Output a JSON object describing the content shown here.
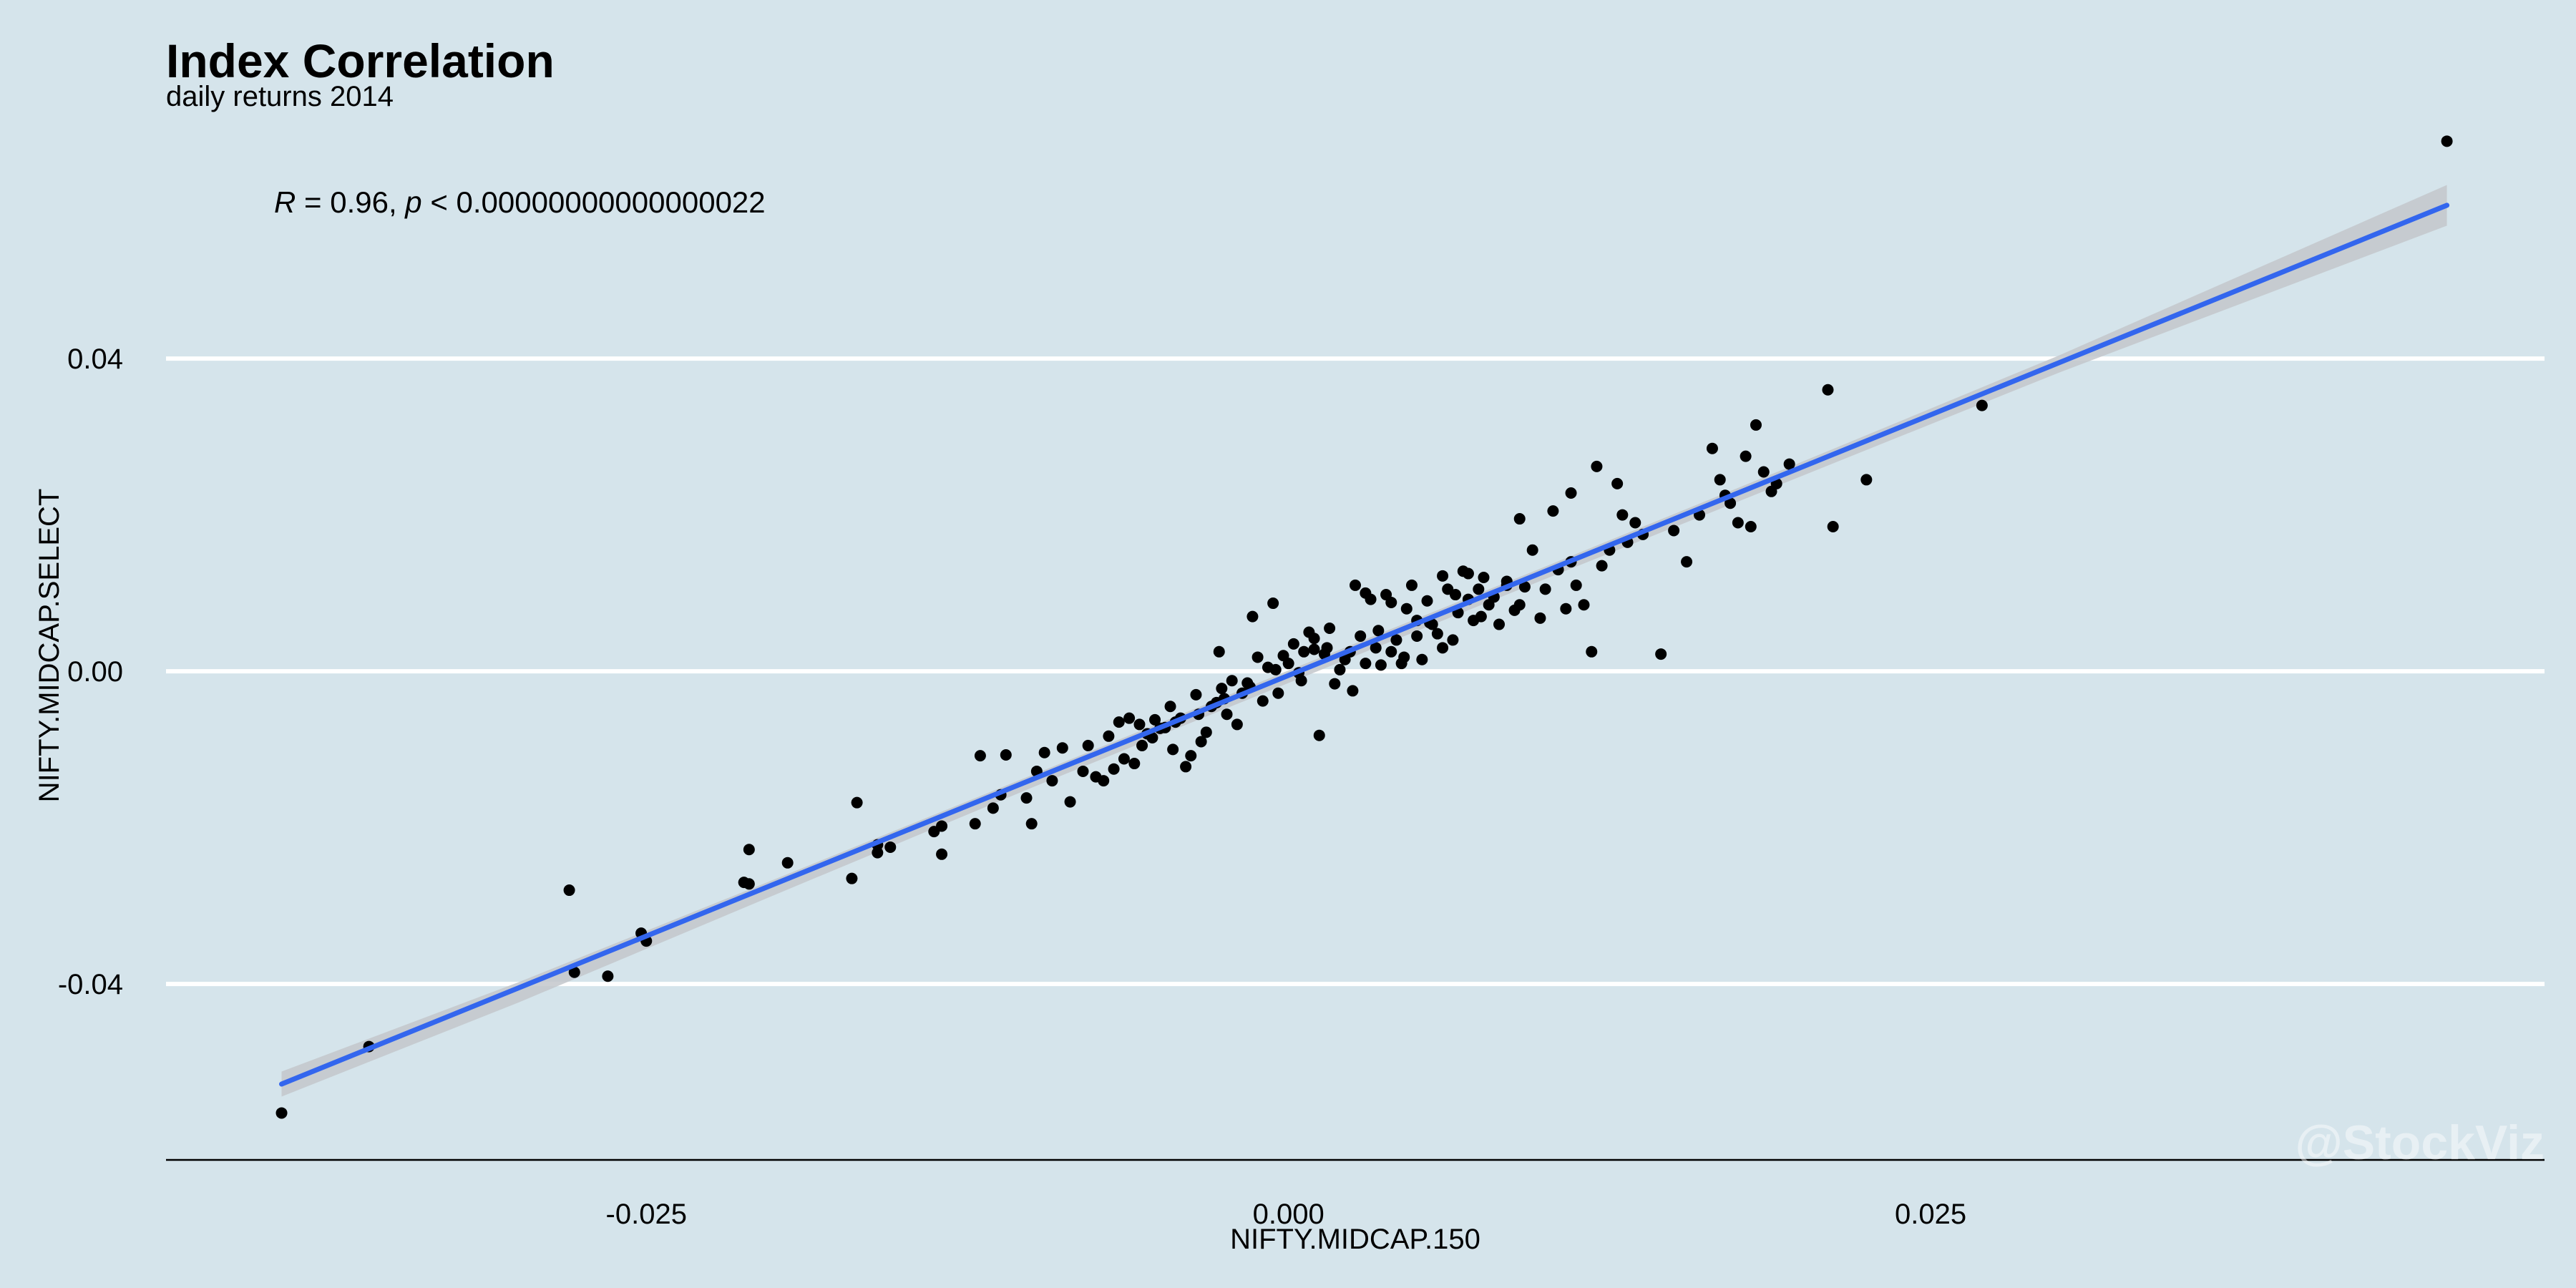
{
  "chart_data": {
    "type": "scatter",
    "title": "Index Correlation",
    "subtitle": "daily returns 2014",
    "xlabel": "NIFTY.MIDCAP.150",
    "ylabel": "NIFTY.MIDCAP.SELECT",
    "annotation": {
      "r_label": "R",
      "r_text": " = 0.96, ",
      "p_label": "p",
      "p_text": " < 0.00000000000000022"
    },
    "watermark": "@StockViz",
    "xlim": [
      -0.0437,
      0.0489
    ],
    "ylim": [
      -0.0625,
      0.0703
    ],
    "x_ticks": [
      -0.025,
      0.0,
      0.025
    ],
    "x_tick_labels": [
      "-0.025",
      "0.000",
      "0.025"
    ],
    "y_ticks": [
      -0.04,
      0.0,
      0.04
    ],
    "y_tick_labels": [
      "-0.04",
      "0.00",
      "0.04"
    ],
    "grid": "horizontal major lines",
    "regression_line": {
      "color": "#3366ee",
      "x": [
        -0.0392,
        0.0451
      ],
      "y": [
        -0.0528,
        0.0596
      ]
    },
    "confidence_band": {
      "color": "#c3c7cb",
      "x": [
        -0.0392,
        -0.03,
        -0.02,
        -0.01,
        0.0,
        0.01,
        0.02,
        0.03,
        0.0451
      ],
      "upper": [
        -0.0512,
        -0.0398,
        -0.0266,
        -0.0133,
        0.0001,
        0.0134,
        0.0268,
        0.0404,
        0.0622
      ],
      "lower": [
        -0.0544,
        -0.0424,
        -0.0286,
        -0.0149,
        -0.0015,
        0.0118,
        0.025,
        0.0382,
        0.057
      ]
    },
    "points": {
      "color": "#000000",
      "x": [
        -0.0392,
        -0.0358,
        -0.028,
        -0.0278,
        -0.0265,
        -0.0252,
        -0.025,
        -0.0212,
        -0.021,
        -0.021,
        -0.0195,
        -0.017,
        -0.0168,
        -0.016,
        -0.016,
        -0.0155,
        -0.0138,
        -0.0135,
        -0.0135,
        -0.0122,
        -0.012,
        -0.0115,
        -0.0112,
        -0.011,
        -0.0102,
        -0.01,
        -0.0098,
        -0.0095,
        -0.0092,
        -0.0088,
        -0.0085,
        -0.008,
        -0.0078,
        -0.0075,
        -0.0072,
        -0.007,
        -0.0068,
        -0.0066,
        -0.0064,
        -0.0062,
        -0.006,
        -0.0058,
        -0.0057,
        -0.0055,
        -0.0053,
        -0.0052,
        -0.005,
        -0.0048,
        -0.0046,
        -0.0045,
        -0.0044,
        -0.0042,
        -0.004,
        -0.0038,
        -0.0036,
        -0.0035,
        -0.0034,
        -0.0032,
        -0.003,
        -0.0028,
        -0.0027,
        -0.0026,
        -0.0024,
        -0.0022,
        -0.002,
        -0.0018,
        -0.0016,
        -0.0014,
        -0.0012,
        -0.001,
        -0.0008,
        -0.0006,
        -0.0004,
        -0.0002,
        0.0,
        0.0002,
        0.0004,
        0.0006,
        0.0008,
        0.001,
        0.0012,
        0.0014,
        0.0016,
        0.0018,
        0.002,
        0.0022,
        0.0024,
        0.0026,
        0.0028,
        0.003,
        0.0032,
        0.0034,
        0.0036,
        0.0038,
        0.004,
        0.0042,
        0.0044,
        0.0046,
        0.0048,
        0.005,
        0.0052,
        0.0054,
        0.0056,
        0.0058,
        0.006,
        0.0062,
        0.0064,
        0.0066,
        0.0068,
        0.007,
        0.0072,
        0.0074,
        0.0076,
        0.0078,
        0.008,
        0.0082,
        0.0085,
        0.0088,
        0.009,
        0.0092,
        0.0095,
        0.0098,
        0.01,
        0.0103,
        0.0105,
        0.0108,
        0.011,
        0.0112,
        0.0115,
        0.0118,
        0.012,
        0.0122,
        0.0125,
        0.0128,
        0.013,
        0.0132,
        0.0135,
        0.0138,
        0.0145,
        0.015,
        0.0155,
        0.016,
        0.0165,
        0.0168,
        0.017,
        0.0172,
        0.0175,
        0.0178,
        0.018,
        0.0182,
        0.0185,
        0.0188,
        0.019,
        0.0195,
        0.021,
        0.0212,
        0.0225,
        0.027,
        0.0451,
        -0.0005,
        0.0005,
        0.0015,
        0.0025,
        0.0035,
        0.0045,
        0.0055,
        0.0065,
        0.0075,
        0.0085,
        -0.0015,
        -0.0025,
        0.001,
        0.003,
        0.005,
        0.007,
        0.009,
        0.011,
        0.006,
        0.004
      ],
      "y": [
        -0.0565,
        -0.048,
        -0.028,
        -0.0385,
        -0.039,
        -0.0335,
        -0.0345,
        -0.027,
        -0.0272,
        -0.0228,
        -0.0245,
        -0.0265,
        -0.0168,
        -0.0222,
        -0.0232,
        -0.0225,
        -0.0205,
        -0.0198,
        -0.0234,
        -0.0195,
        -0.0108,
        -0.0175,
        -0.0158,
        -0.0107,
        -0.0162,
        -0.0195,
        -0.0128,
        -0.0104,
        -0.014,
        -0.0098,
        -0.0167,
        -0.0128,
        -0.0095,
        -0.0135,
        -0.014,
        -0.0083,
        -0.0125,
        -0.0065,
        -0.0112,
        -0.006,
        -0.0118,
        -0.0068,
        -0.0095,
        -0.008,
        -0.0085,
        -0.0062,
        -0.0073,
        -0.0072,
        -0.0045,
        -0.01,
        -0.0065,
        -0.006,
        -0.0122,
        -0.0108,
        -0.003,
        -0.0055,
        -0.009,
        -0.0078,
        -0.0045,
        -0.004,
        0.0025,
        -0.0022,
        -0.0055,
        -0.0012,
        -0.0068,
        -0.0028,
        -0.0015,
        0.007,
        0.0018,
        -0.0038,
        0.0005,
        0.0087,
        -0.0028,
        0.002,
        0.001,
        0.0035,
        -0.0002,
        0.0025,
        0.005,
        0.0028,
        -0.0082,
        0.0022,
        0.0055,
        -0.0016,
        0.0002,
        0.0015,
        0.0025,
        0.011,
        0.0045,
        0.001,
        0.0092,
        0.003,
        0.0008,
        0.0098,
        0.0025,
        0.004,
        0.001,
        0.008,
        0.011,
        0.0045,
        0.0015,
        0.009,
        0.006,
        0.0048,
        0.0122,
        0.0105,
        0.004,
        0.0075,
        0.0128,
        0.0092,
        0.0065,
        0.0105,
        0.012,
        0.0085,
        0.0095,
        0.006,
        0.0115,
        0.0078,
        0.0195,
        0.0108,
        0.0155,
        0.0068,
        0.0105,
        0.0205,
        0.013,
        0.008,
        0.0228,
        0.011,
        0.0085,
        0.0025,
        0.0262,
        0.0135,
        0.0155,
        0.024,
        0.02,
        0.0165,
        0.019,
        0.0175,
        0.0022,
        0.018,
        0.014,
        0.02,
        0.0285,
        0.0245,
        0.0225,
        0.0215,
        0.019,
        0.0275,
        0.0185,
        0.0315,
        0.0255,
        0.023,
        0.024,
        0.0265,
        0.036,
        0.0185,
        0.0245,
        0.034,
        0.0678,
        0.0002,
        -0.0012,
        0.003,
        -0.0025,
        0.0052,
        0.0018,
        0.0062,
        0.0098,
        0.007,
        0.011,
        -0.002,
        -0.0035,
        0.0042,
        0.01,
        0.0065,
        0.0125,
        0.0085,
        0.014,
        0.003,
        0.0088
      ]
    }
  }
}
